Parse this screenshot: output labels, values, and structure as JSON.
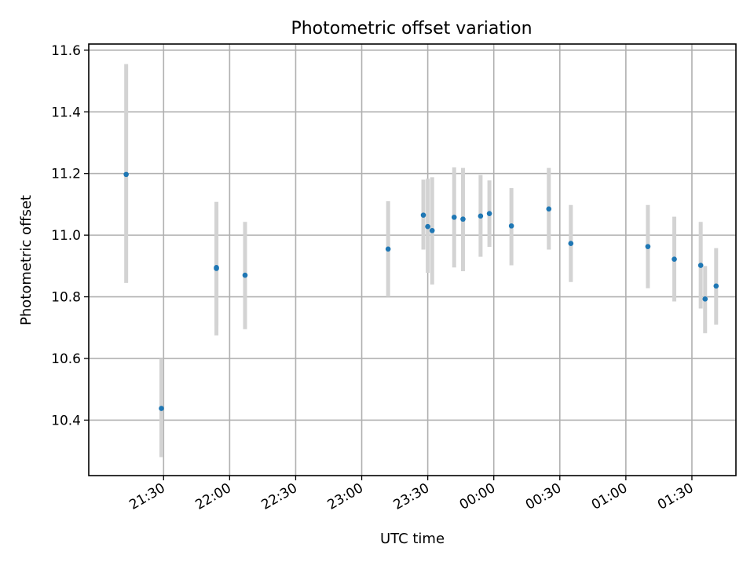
{
  "chart_data": {
    "type": "scatter",
    "title": "Photometric offset variation",
    "xlabel": "UTC time",
    "ylabel": "Photometric offset",
    "x_reference_time": "21:00",
    "x_range_minutes": [
      -4,
      290
    ],
    "ylim": [
      10.22,
      11.62
    ],
    "grid": true,
    "x_tick_labels": [
      "21:30",
      "22:00",
      "22:30",
      "23:00",
      "23:30",
      "00:00",
      "00:30",
      "01:00",
      "01:30"
    ],
    "x_tick_minutes": [
      30,
      60,
      90,
      120,
      150,
      180,
      210,
      240,
      270
    ],
    "y_tick_labels": [
      "10.4",
      "10.6",
      "10.8",
      "11.0",
      "11.2",
      "11.4",
      "11.6"
    ],
    "y_ticks": [
      10.4,
      10.6,
      10.8,
      11.0,
      11.2,
      11.4,
      11.6
    ],
    "point_color": "#1f77b4",
    "errorbar_color": "#d3d3d3",
    "points": [
      {
        "time": "21:13",
        "y": 11.197,
        "low": 10.845,
        "high": 11.555
      },
      {
        "time": "21:29",
        "y": 10.438,
        "low": 10.28,
        "high": 10.6
      },
      {
        "time": "21:54",
        "y": 10.895,
        "low": 10.705,
        "high": 11.083
      },
      {
        "time": "21:54",
        "y": 10.892,
        "low": 10.675,
        "high": 11.108
      },
      {
        "time": "22:07",
        "y": 10.87,
        "low": 10.695,
        "high": 11.043
      },
      {
        "time": "23:12",
        "y": 10.955,
        "low": 10.8,
        "high": 11.11
      },
      {
        "time": "23:28",
        "y": 11.065,
        "low": 10.953,
        "high": 11.18
      },
      {
        "time": "23:30",
        "y": 11.028,
        "low": 10.878,
        "high": 11.183
      },
      {
        "time": "23:32",
        "y": 11.015,
        "low": 10.84,
        "high": 11.188
      },
      {
        "time": "23:42",
        "y": 11.058,
        "low": 10.895,
        "high": 11.22
      },
      {
        "time": "23:46",
        "y": 11.052,
        "low": 10.883,
        "high": 11.218
      },
      {
        "time": "23:54",
        "y": 11.062,
        "low": 10.93,
        "high": 11.195
      },
      {
        "time": "23:58",
        "y": 11.07,
        "low": 10.962,
        "high": 11.178
      },
      {
        "time": "00:08",
        "y": 11.03,
        "low": 10.902,
        "high": 11.153
      },
      {
        "time": "00:25",
        "y": 11.085,
        "low": 10.953,
        "high": 11.218
      },
      {
        "time": "00:35",
        "y": 10.973,
        "low": 10.848,
        "high": 11.098
      },
      {
        "time": "01:10",
        "y": 10.963,
        "low": 10.828,
        "high": 11.098
      },
      {
        "time": "01:22",
        "y": 10.922,
        "low": 10.785,
        "high": 11.06
      },
      {
        "time": "01:34",
        "y": 10.902,
        "low": 10.762,
        "high": 11.043
      },
      {
        "time": "01:36",
        "y": 10.793,
        "low": 10.682,
        "high": 10.9
      },
      {
        "time": "01:41",
        "y": 10.835,
        "low": 10.71,
        "high": 10.958
      }
    ]
  }
}
